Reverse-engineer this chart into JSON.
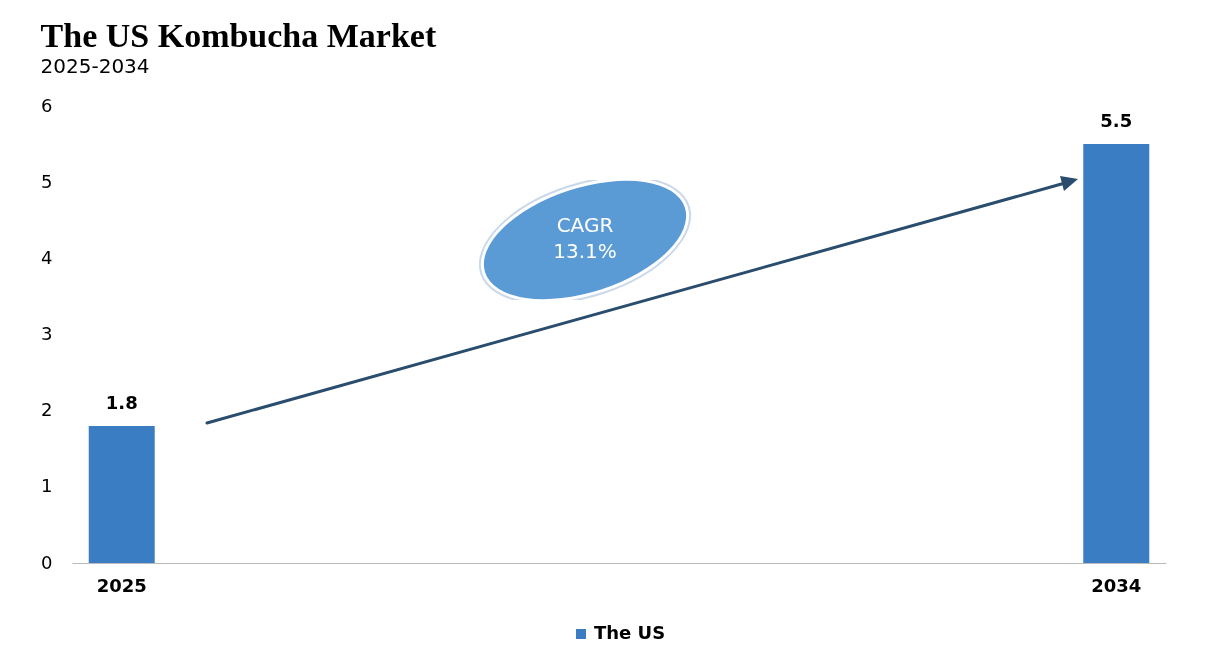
{
  "chart_data": {
    "type": "bar",
    "title": "The US Kombucha Market",
    "subtitle": "2025-2034",
    "categories": [
      "2025",
      "2034"
    ],
    "series": [
      {
        "name": "The US",
        "color": "#3a7dc2",
        "values": [
          1.8,
          5.5
        ]
      }
    ],
    "ylim": [
      0,
      6
    ],
    "yticks": [
      0,
      1,
      2,
      3,
      4,
      5,
      6
    ],
    "grid": false,
    "legend": "bottom",
    "data_labels": true,
    "annotations": [
      "CAGR 13.1%"
    ]
  }
}
